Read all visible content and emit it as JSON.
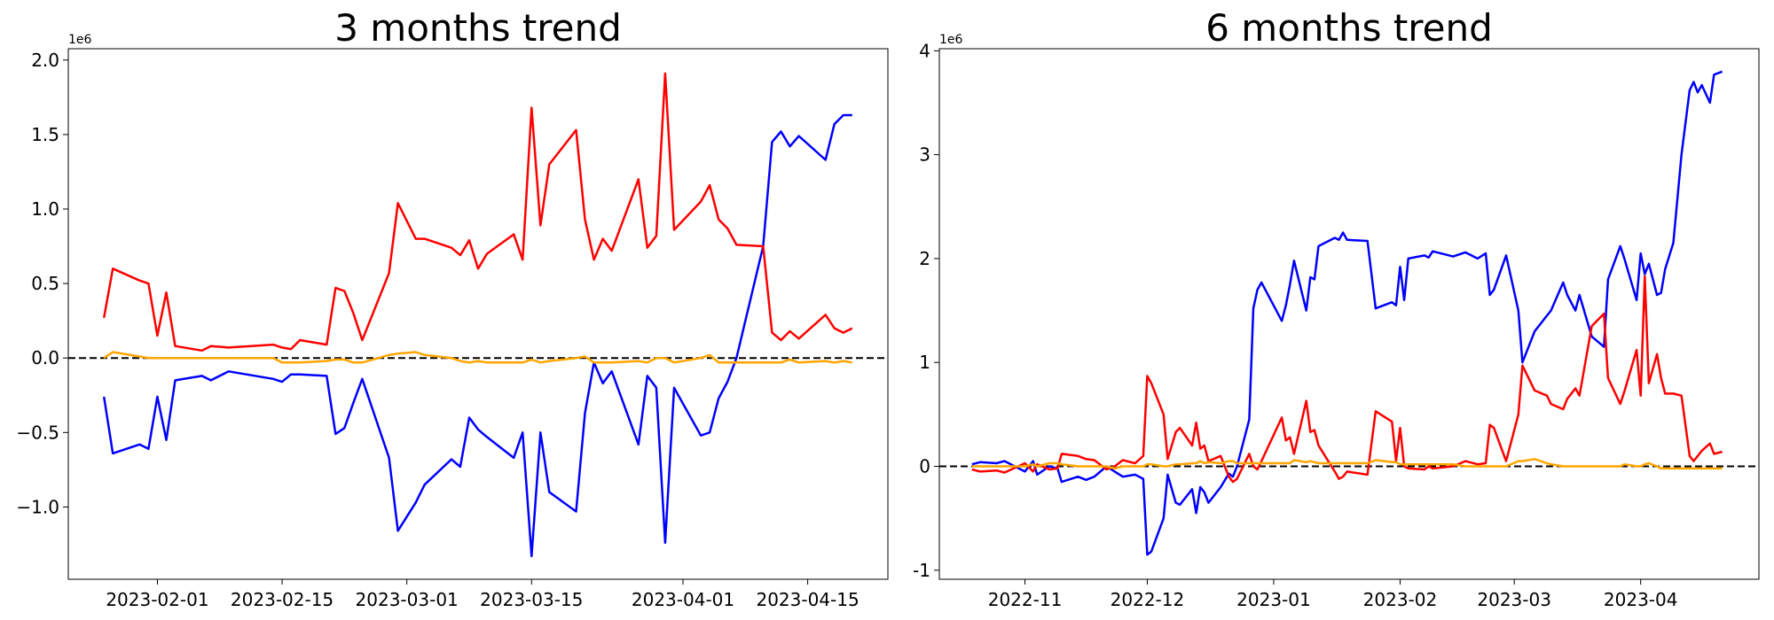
{
  "chart_data": [
    {
      "type": "line",
      "title": "3 months trend",
      "y_offset_label": "1e6",
      "hline": 0,
      "x": [
        "2023-01-26",
        "2023-01-27",
        "2023-01-30",
        "2023-01-31",
        "2023-02-01",
        "2023-02-02",
        "2023-02-03",
        "2023-02-06",
        "2023-02-07",
        "2023-02-09",
        "2023-02-14",
        "2023-02-15",
        "2023-02-16",
        "2023-02-17",
        "2023-02-20",
        "2023-02-21",
        "2023-02-22",
        "2023-02-23",
        "2023-02-24",
        "2023-02-27",
        "2023-02-28",
        "2023-03-02",
        "2023-03-03",
        "2023-03-06",
        "2023-03-07",
        "2023-03-08",
        "2023-03-09",
        "2023-03-10",
        "2023-03-13",
        "2023-03-14",
        "2023-03-15",
        "2023-03-16",
        "2023-03-17",
        "2023-03-20",
        "2023-03-21",
        "2023-03-22",
        "2023-03-23",
        "2023-03-24",
        "2023-03-27",
        "2023-03-28",
        "2023-03-29",
        "2023-03-30",
        "2023-03-31",
        "2023-04-03",
        "2023-04-04",
        "2023-04-05",
        "2023-04-06",
        "2023-04-07",
        "2023-04-10",
        "2023-04-11",
        "2023-04-12",
        "2023-04-13",
        "2023-04-14",
        "2023-04-17",
        "2023-04-18",
        "2023-04-19",
        "2023-04-20"
      ],
      "series": [
        {
          "color": "#0000ff",
          "values": [
            -0.26,
            -0.64,
            -0.58,
            -0.61,
            -0.26,
            -0.55,
            -0.15,
            -0.12,
            -0.15,
            -0.09,
            -0.14,
            -0.16,
            -0.11,
            -0.11,
            -0.12,
            -0.51,
            -0.47,
            -0.3,
            -0.14,
            -0.67,
            -1.16,
            -0.97,
            -0.85,
            -0.68,
            -0.73,
            -0.4,
            -0.48,
            -0.53,
            -0.67,
            -0.5,
            -1.33,
            -0.5,
            -0.9,
            -1.03,
            -0.37,
            -0.03,
            -0.17,
            -0.09,
            -0.58,
            -0.12,
            -0.2,
            -1.24,
            -0.2,
            -0.52,
            -0.5,
            -0.27,
            -0.16,
            0.0,
            0.75,
            1.45,
            1.52,
            1.42,
            1.49,
            1.33,
            1.57,
            1.63,
            1.63
          ]
        },
        {
          "color": "#ff0000",
          "values": [
            0.27,
            0.6,
            0.52,
            0.5,
            0.15,
            0.44,
            0.08,
            0.05,
            0.08,
            0.07,
            0.09,
            0.07,
            0.06,
            0.12,
            0.09,
            0.47,
            0.45,
            0.3,
            0.12,
            0.57,
            1.04,
            0.8,
            0.8,
            0.74,
            0.69,
            0.79,
            0.6,
            0.7,
            0.83,
            0.66,
            1.68,
            0.89,
            1.3,
            1.53,
            0.93,
            0.66,
            0.8,
            0.72,
            1.2,
            0.74,
            0.82,
            1.91,
            0.86,
            1.05,
            1.16,
            0.93,
            0.87,
            0.76,
            0.75,
            0.17,
            0.12,
            0.18,
            0.13,
            0.29,
            0.2,
            0.17,
            0.2
          ]
        },
        {
          "color": "#ffa500",
          "values": [
            0.0,
            0.04,
            0.01,
            0.0,
            0.0,
            0.0,
            0.0,
            0.0,
            0.0,
            0.0,
            0.0,
            -0.03,
            -0.03,
            -0.03,
            -0.02,
            -0.01,
            -0.01,
            -0.03,
            -0.03,
            0.02,
            0.03,
            0.04,
            0.02,
            0.0,
            -0.02,
            -0.03,
            -0.02,
            -0.03,
            -0.03,
            -0.03,
            -0.01,
            -0.03,
            -0.02,
            0.0,
            0.01,
            -0.03,
            -0.03,
            -0.03,
            -0.02,
            -0.03,
            0.0,
            0.0,
            -0.03,
            0.0,
            0.02,
            -0.03,
            -0.03,
            -0.03,
            -0.03,
            -0.03,
            -0.03,
            -0.01,
            -0.03,
            -0.02,
            -0.03,
            -0.02,
            -0.03
          ]
        }
      ],
      "xlim": [
        "2023-01-22",
        "2023-04-24"
      ],
      "xticks": [
        "2023-02-01",
        "2023-02-15",
        "2023-03-01",
        "2023-03-15",
        "2023-04-01",
        "2023-04-15"
      ],
      "ylim": [
        -1.485,
        2.076
      ],
      "yticks": [
        {
          "value": -1,
          "label": "−1.0"
        },
        "−0.5",
        {
          "value": 0,
          "label": "0.0"
        },
        0.5,
        {
          "value": 1,
          "label": "1.0"
        },
        1.5,
        {
          "value": 2,
          "label": "2.0"
        }
      ]
    },
    {
      "type": "line",
      "title": "6 months trend",
      "y_offset_label": "1e6",
      "hline": 0,
      "x": [
        "2022-10-19",
        "2022-10-21",
        "2022-10-25",
        "2022-10-27",
        "2022-11-01",
        "2022-11-03",
        "2022-11-04",
        "2022-11-07",
        "2022-11-09",
        "2022-11-10",
        "2022-11-14",
        "2022-11-16",
        "2022-11-18",
        "2022-11-21",
        "2022-11-23",
        "2022-11-25",
        "2022-11-28",
        "2022-11-30",
        "2022-12-01",
        "2022-12-02",
        "2022-12-05",
        "2022-12-06",
        "2022-12-08",
        "2022-12-09",
        "2022-12-12",
        "2022-12-13",
        "2022-12-14",
        "2022-12-15",
        "2022-12-16",
        "2022-12-19",
        "2022-12-21",
        "2022-12-22",
        "2022-12-23",
        "2022-12-26",
        "2022-12-27",
        "2022-12-28",
        "2022-12-29",
        "2023-01-03",
        "2023-01-04",
        "2023-01-05",
        "2023-01-06",
        "2023-01-09",
        "2023-01-10",
        "2023-01-11",
        "2023-01-12",
        "2023-01-16",
        "2023-01-17",
        "2023-01-18",
        "2023-01-19",
        "2023-01-24",
        "2023-01-26",
        "2023-01-30",
        "2023-01-31",
        "2023-02-01",
        "2023-02-02",
        "2023-02-03",
        "2023-02-07",
        "2023-02-08",
        "2023-02-09",
        "2023-02-14",
        "2023-02-17",
        "2023-02-20",
        "2023-02-22",
        "2023-02-23",
        "2023-02-24",
        "2023-02-27",
        "2023-03-02",
        "2023-03-03",
        "2023-03-06",
        "2023-03-09",
        "2023-03-10",
        "2023-03-13",
        "2023-03-14",
        "2023-03-16",
        "2023-03-17",
        "2023-03-20",
        "2023-03-23",
        "2023-03-24",
        "2023-03-27",
        "2023-03-28",
        "2023-03-31",
        "2023-04-01",
        "2023-04-02",
        "2023-04-03",
        "2023-04-05",
        "2023-04-06",
        "2023-04-07",
        "2023-04-09",
        "2023-04-11",
        "2023-04-13",
        "2023-04-14",
        "2023-04-15",
        "2023-04-16",
        "2023-04-18",
        "2023-04-19",
        "2023-04-21"
      ],
      "series": [
        {
          "color": "#0000ff",
          "values": [
            0.02,
            0.04,
            0.03,
            0.05,
            -0.05,
            0.05,
            -0.08,
            0.0,
            -0.02,
            -0.15,
            -0.1,
            -0.13,
            -0.1,
            0.0,
            -0.05,
            -0.1,
            -0.08,
            -0.12,
            -0.85,
            -0.82,
            -0.5,
            -0.08,
            -0.35,
            -0.37,
            -0.22,
            -0.45,
            -0.2,
            -0.25,
            -0.35,
            -0.2,
            -0.07,
            -0.1,
            0.0,
            0.45,
            1.52,
            1.7,
            1.77,
            1.4,
            1.55,
            1.75,
            1.98,
            1.5,
            1.82,
            1.8,
            2.12,
            2.2,
            2.18,
            2.25,
            2.18,
            2.17,
            1.52,
            1.58,
            1.55,
            1.92,
            1.6,
            2.0,
            2.03,
            2.01,
            2.07,
            2.02,
            2.06,
            2.0,
            2.05,
            1.65,
            1.7,
            2.03,
            1.5,
            1.0,
            1.3,
            1.45,
            1.5,
            1.77,
            1.65,
            1.5,
            1.65,
            1.25,
            1.15,
            1.8,
            2.12,
            2.0,
            1.6,
            2.05,
            1.85,
            1.95,
            1.65,
            1.67,
            1.9,
            2.15,
            3.0,
            3.62,
            3.7,
            3.6,
            3.67,
            3.5,
            3.77,
            3.8
          ]
        },
        {
          "color": "#ff0000",
          "values": [
            -0.03,
            -0.05,
            -0.04,
            -0.06,
            0.03,
            -0.05,
            0.02,
            -0.03,
            -0.02,
            0.12,
            0.1,
            0.07,
            0.06,
            -0.03,
            0.0,
            0.06,
            0.03,
            0.1,
            0.87,
            0.8,
            0.5,
            0.07,
            0.33,
            0.37,
            0.2,
            0.42,
            0.17,
            0.2,
            0.05,
            0.1,
            -0.1,
            -0.15,
            -0.12,
            0.12,
            0.0,
            -0.03,
            0.05,
            0.47,
            0.25,
            0.28,
            0.12,
            0.63,
            0.33,
            0.35,
            0.2,
            -0.05,
            -0.12,
            -0.1,
            -0.05,
            -0.08,
            0.53,
            0.43,
            0.05,
            0.37,
            0.0,
            -0.02,
            -0.03,
            0.0,
            -0.02,
            0.0,
            0.05,
            0.02,
            0.03,
            0.4,
            0.37,
            0.05,
            0.5,
            0.97,
            0.73,
            0.68,
            0.6,
            0.55,
            0.65,
            0.75,
            0.68,
            1.35,
            1.47,
            0.85,
            0.6,
            0.72,
            1.12,
            0.68,
            1.83,
            0.8,
            1.08,
            0.85,
            0.7,
            0.7,
            0.68,
            0.1,
            0.05,
            0.1,
            0.15,
            0.22,
            0.12,
            0.14
          ]
        },
        {
          "color": "#ffa500",
          "values": [
            0.0,
            0.0,
            0.0,
            0.0,
            0.0,
            0.02,
            0.0,
            0.03,
            0.03,
            0.02,
            0.0,
            0.0,
            0.0,
            0.0,
            -0.02,
            0.0,
            0.0,
            0.0,
            0.02,
            0.02,
            0.0,
            0.0,
            0.02,
            0.02,
            0.03,
            0.03,
            0.05,
            0.03,
            0.04,
            0.03,
            0.05,
            0.05,
            0.03,
            0.03,
            0.03,
            0.03,
            0.03,
            0.03,
            0.03,
            0.03,
            0.06,
            0.04,
            0.05,
            0.04,
            0.03,
            0.03,
            0.03,
            0.03,
            0.03,
            0.03,
            0.06,
            0.04,
            0.04,
            0.02,
            0.02,
            0.02,
            0.02,
            0.02,
            0.02,
            0.02,
            0.0,
            0.0,
            0.0,
            0.0,
            0.0,
            0.0,
            0.05,
            0.05,
            0.07,
            0.03,
            0.02,
            0.0,
            0.0,
            0.0,
            0.0,
            0.0,
            0.0,
            0.0,
            0.0,
            0.02,
            0.0,
            0.0,
            0.02,
            0.03,
            0.0,
            -0.02,
            -0.02,
            -0.02,
            -0.02,
            -0.02,
            -0.02,
            -0.02,
            -0.02,
            -0.02,
            -0.02,
            -0.02
          ]
        }
      ],
      "xlim": [
        "2022-10-11",
        "2023-04-30"
      ],
      "xticks": [
        "2022-11",
        "2022-12",
        "2023-01",
        "2023-02",
        "2023-03",
        "2023-04"
      ],
      "ylim": [
        -1.087,
        4.02
      ],
      "yticks": [
        -1,
        0,
        1,
        2,
        3,
        4
      ]
    }
  ]
}
